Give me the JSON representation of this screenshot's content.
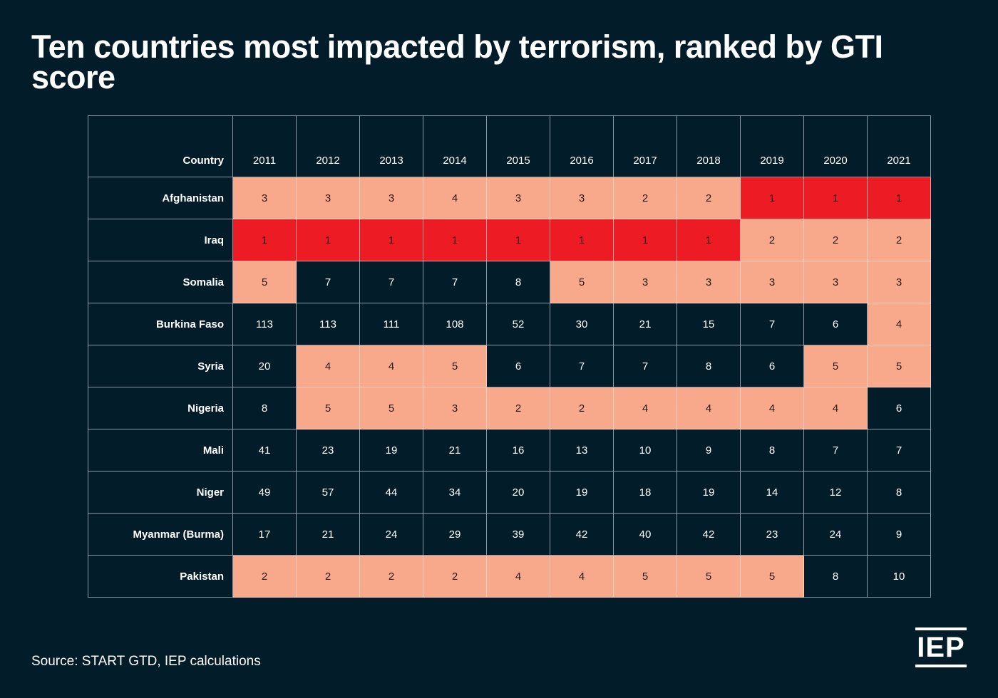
{
  "title": "Ten countries most impacted by terrorism, ranked by GTI score",
  "source": "Source: START GTD, IEP calculations",
  "logo": "IEP",
  "colors": {
    "background": "#021d29",
    "rank1": "#ed1c24",
    "rank2to5": "#f9a98b",
    "other": "#021d29"
  },
  "chart_data": {
    "type": "table",
    "title": "Ten countries most impacted by terrorism, ranked by GTI score",
    "row_header_label": "Country",
    "columns": [
      "2011",
      "2012",
      "2013",
      "2014",
      "2015",
      "2016",
      "2017",
      "2018",
      "2019",
      "2020",
      "2021"
    ],
    "color_rule": "rank 1 = red, ranks 2-5 = salmon, rank > 5 = dark",
    "rows": [
      {
        "country": "Afghanistan",
        "values": [
          3,
          3,
          3,
          4,
          3,
          3,
          2,
          2,
          1,
          1,
          1
        ]
      },
      {
        "country": "Iraq",
        "values": [
          1,
          1,
          1,
          1,
          1,
          1,
          1,
          1,
          2,
          2,
          2
        ]
      },
      {
        "country": "Somalia",
        "values": [
          5,
          7,
          7,
          7,
          8,
          5,
          3,
          3,
          3,
          3,
          3
        ]
      },
      {
        "country": "Burkina Faso",
        "values": [
          113,
          113,
          111,
          108,
          52,
          30,
          21,
          15,
          7,
          6,
          4
        ]
      },
      {
        "country": "Syria",
        "values": [
          20,
          4,
          4,
          5,
          6,
          7,
          7,
          8,
          6,
          5,
          5
        ]
      },
      {
        "country": "Nigeria",
        "values": [
          8,
          5,
          5,
          3,
          2,
          2,
          4,
          4,
          4,
          4,
          6
        ]
      },
      {
        "country": "Mali",
        "values": [
          41,
          23,
          19,
          21,
          16,
          13,
          10,
          9,
          8,
          7,
          7
        ]
      },
      {
        "country": "Niger",
        "values": [
          49,
          57,
          44,
          34,
          20,
          19,
          18,
          19,
          14,
          12,
          8
        ]
      },
      {
        "country": "Myanmar (Burma)",
        "values": [
          17,
          21,
          24,
          29,
          39,
          42,
          40,
          42,
          23,
          24,
          9
        ]
      },
      {
        "country": "Pakistan",
        "values": [
          2,
          2,
          2,
          2,
          4,
          4,
          5,
          5,
          5,
          8,
          10
        ]
      }
    ]
  }
}
